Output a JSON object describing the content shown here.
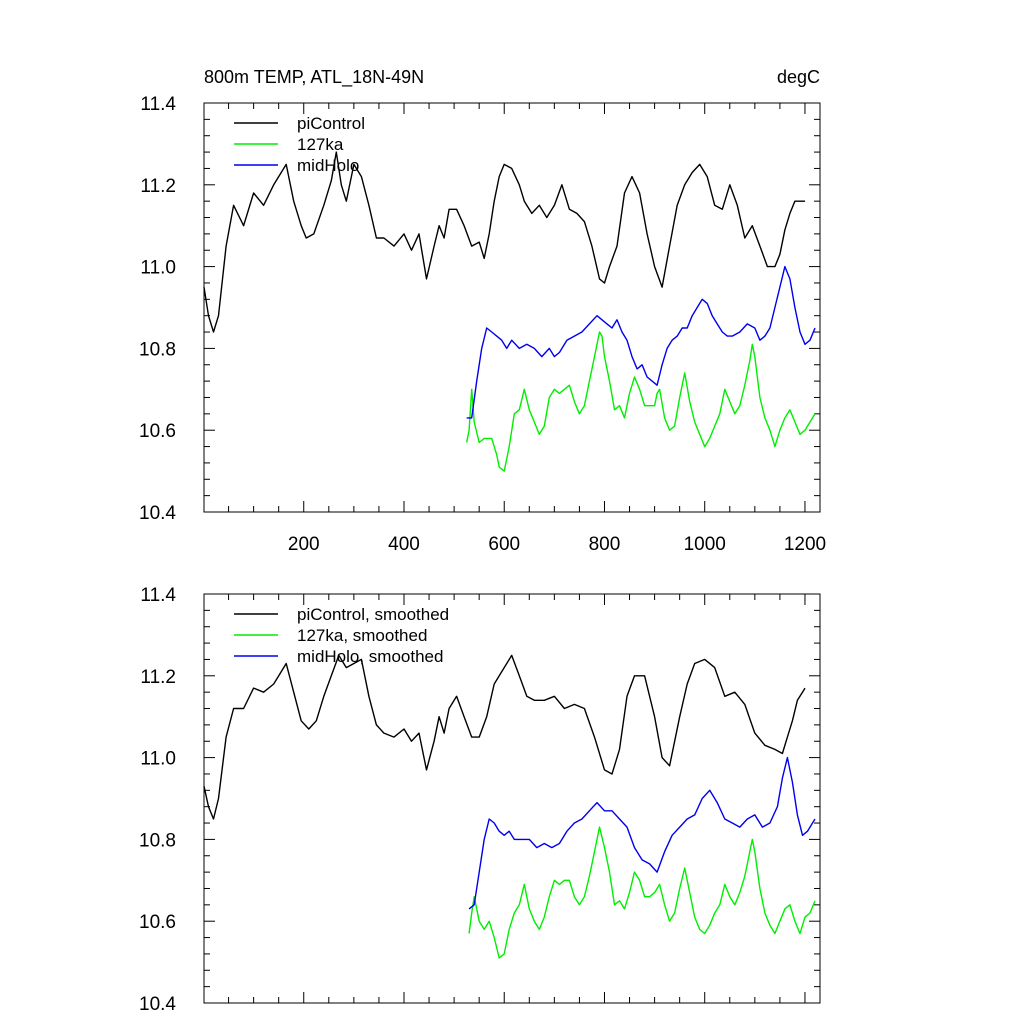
{
  "title_left": "800m TEMP, ATL_18N-49N",
  "title_right": "degC",
  "colors": {
    "picontrol": "#000000",
    "ka127": "#00ee00",
    "midholo": "#0000ee"
  },
  "chart_data": [
    {
      "type": "line",
      "xlim": [
        1,
        1230
      ],
      "ylim": [
        10.4,
        11.4
      ],
      "x_ticks": [
        200,
        400,
        600,
        800,
        1000,
        1200
      ],
      "x_tick_labels": [
        "200",
        "400",
        "600",
        "800",
        "1000",
        "1200"
      ],
      "y_ticks": [
        10.4,
        10.6,
        10.8,
        11.0,
        11.2,
        11.4
      ],
      "y_tick_labels": [
        "10.4",
        "10.6",
        "10.8",
        "11.0",
        "11.2",
        "11.4"
      ],
      "legend": [
        "piControl",
        "127ka",
        "midHolo"
      ],
      "legend_position": "top-left",
      "series": [
        {
          "name": "piControl",
          "color": "#000000",
          "x": [
            1,
            10,
            20,
            30,
            45,
            60,
            80,
            100,
            120,
            140,
            165,
            180,
            195,
            205,
            220,
            240,
            255,
            265,
            275,
            285,
            300,
            315,
            330,
            345,
            360,
            380,
            400,
            415,
            430,
            445,
            460,
            470,
            480,
            490,
            505,
            520,
            535,
            550,
            560,
            570,
            580,
            590,
            600,
            615,
            630,
            640,
            655,
            670,
            685,
            700,
            715,
            730,
            745,
            760,
            775,
            790,
            800,
            810,
            825,
            840,
            855,
            870,
            885,
            900,
            915,
            930,
            945,
            960,
            975,
            990,
            1005,
            1020,
            1035,
            1050,
            1065,
            1080,
            1095,
            1110,
            1125,
            1140,
            1150,
            1160,
            1170,
            1180,
            1190,
            1200
          ],
          "y": [
            10.95,
            10.88,
            10.84,
            10.88,
            11.05,
            11.15,
            11.1,
            11.18,
            11.15,
            11.2,
            11.25,
            11.16,
            11.1,
            11.07,
            11.08,
            11.15,
            11.21,
            11.28,
            11.2,
            11.16,
            11.25,
            11.22,
            11.15,
            11.07,
            11.07,
            11.05,
            11.08,
            11.04,
            11.08,
            10.97,
            11.05,
            11.1,
            11.07,
            11.14,
            11.14,
            11.1,
            11.05,
            11.06,
            11.02,
            11.08,
            11.16,
            11.22,
            11.25,
            11.24,
            11.2,
            11.16,
            11.13,
            11.15,
            11.12,
            11.15,
            11.2,
            11.14,
            11.13,
            11.11,
            11.05,
            10.97,
            10.96,
            11.0,
            11.05,
            11.18,
            11.22,
            11.18,
            11.08,
            11.0,
            10.95,
            11.05,
            11.15,
            11.2,
            11.23,
            11.25,
            11.22,
            11.15,
            11.14,
            11.2,
            11.15,
            11.07,
            11.1,
            11.05,
            11.0,
            11.0,
            11.03,
            11.09,
            11.13,
            11.16,
            11.16,
            11.16
          ]
        },
        {
          "name": "127ka",
          "color": "#00ee00",
          "x": [
            525,
            530,
            535,
            540,
            550,
            560,
            575,
            585,
            590,
            600,
            610,
            620,
            630,
            640,
            650,
            660,
            670,
            680,
            690,
            700,
            710,
            720,
            730,
            740,
            750,
            760,
            770,
            780,
            790,
            795,
            800,
            810,
            820,
            830,
            840,
            850,
            860,
            870,
            880,
            890,
            900,
            905,
            910,
            920,
            930,
            940,
            950,
            960,
            970,
            980,
            990,
            1000,
            1010,
            1020,
            1030,
            1040,
            1050,
            1060,
            1070,
            1080,
            1090,
            1095,
            1100,
            1110,
            1120,
            1130,
            1140,
            1150,
            1160,
            1170,
            1180,
            1190,
            1200,
            1210,
            1220
          ],
          "y": [
            10.57,
            10.6,
            10.7,
            10.62,
            10.57,
            10.58,
            10.58,
            10.54,
            10.51,
            10.5,
            10.56,
            10.64,
            10.65,
            10.7,
            10.65,
            10.62,
            10.59,
            10.61,
            10.68,
            10.7,
            10.69,
            10.7,
            10.71,
            10.67,
            10.64,
            10.66,
            10.72,
            10.78,
            10.84,
            10.83,
            10.78,
            10.72,
            10.65,
            10.66,
            10.63,
            10.69,
            10.73,
            10.7,
            10.66,
            10.66,
            10.66,
            10.69,
            10.7,
            10.63,
            10.6,
            10.61,
            10.68,
            10.74,
            10.67,
            10.62,
            10.59,
            10.56,
            10.58,
            10.61,
            10.64,
            10.7,
            10.67,
            10.64,
            10.66,
            10.71,
            10.77,
            10.81,
            10.78,
            10.68,
            10.63,
            10.6,
            10.56,
            10.6,
            10.63,
            10.65,
            10.62,
            10.59,
            10.6,
            10.62,
            10.64
          ]
        },
        {
          "name": "midHolo",
          "color": "#0000ee",
          "x": [
            525,
            535,
            545,
            555,
            565,
            575,
            585,
            595,
            605,
            615,
            630,
            645,
            660,
            675,
            690,
            700,
            710,
            725,
            740,
            755,
            770,
            785,
            795,
            805,
            815,
            825,
            835,
            845,
            855,
            865,
            875,
            885,
            895,
            905,
            915,
            925,
            935,
            945,
            955,
            965,
            975,
            985,
            995,
            1005,
            1015,
            1025,
            1035,
            1045,
            1055,
            1070,
            1085,
            1100,
            1110,
            1120,
            1130,
            1140,
            1150,
            1160,
            1170,
            1180,
            1190,
            1200,
            1210,
            1220
          ],
          "y": [
            10.63,
            10.63,
            10.72,
            10.8,
            10.85,
            10.84,
            10.83,
            10.82,
            10.8,
            10.82,
            10.8,
            10.81,
            10.8,
            10.78,
            10.8,
            10.78,
            10.79,
            10.82,
            10.83,
            10.84,
            10.86,
            10.88,
            10.87,
            10.86,
            10.85,
            10.87,
            10.84,
            10.82,
            10.78,
            10.75,
            10.76,
            10.73,
            10.72,
            10.71,
            10.76,
            10.8,
            10.82,
            10.83,
            10.85,
            10.85,
            10.88,
            10.9,
            10.92,
            10.91,
            10.88,
            10.86,
            10.84,
            10.83,
            10.83,
            10.84,
            10.86,
            10.85,
            10.82,
            10.83,
            10.85,
            10.9,
            10.95,
            11.0,
            10.97,
            10.9,
            10.84,
            10.81,
            10.82,
            10.85
          ]
        }
      ]
    },
    {
      "type": "line",
      "xlim": [
        1,
        1230
      ],
      "ylim": [
        10.4,
        11.4
      ],
      "x_ticks": [
        200,
        400,
        600,
        800,
        1000,
        1200
      ],
      "x_tick_labels": [],
      "y_ticks": [
        10.4,
        10.6,
        10.8,
        11.0,
        11.2,
        11.4
      ],
      "y_tick_labels": [
        "10.4",
        "10.6",
        "10.8",
        "11.0",
        "11.2",
        "11.4"
      ],
      "legend": [
        "piControl, smoothed",
        "127ka, smoothed",
        "midHolo, smoothed"
      ],
      "legend_position": "top-left",
      "series": [
        {
          "name": "piControl, smoothed",
          "color": "#000000",
          "x": [
            1,
            10,
            20,
            30,
            45,
            60,
            80,
            100,
            120,
            140,
            165,
            180,
            195,
            210,
            225,
            240,
            255,
            270,
            285,
            300,
            315,
            330,
            345,
            360,
            380,
            400,
            415,
            430,
            445,
            460,
            470,
            480,
            490,
            505,
            520,
            535,
            550,
            565,
            580,
            600,
            615,
            630,
            645,
            660,
            680,
            700,
            720,
            740,
            760,
            780,
            800,
            815,
            830,
            845,
            860,
            880,
            900,
            915,
            930,
            950,
            965,
            980,
            1000,
            1020,
            1040,
            1060,
            1080,
            1100,
            1120,
            1140,
            1155,
            1165,
            1175,
            1185,
            1195,
            1200
          ],
          "y": [
            10.93,
            10.88,
            10.85,
            10.9,
            11.05,
            11.12,
            11.12,
            11.17,
            11.16,
            11.18,
            11.23,
            11.16,
            11.09,
            11.07,
            11.09,
            11.15,
            11.2,
            11.25,
            11.22,
            11.23,
            11.24,
            11.15,
            11.08,
            11.06,
            11.05,
            11.07,
            11.04,
            11.06,
            10.97,
            11.04,
            11.1,
            11.06,
            11.12,
            11.15,
            11.1,
            11.05,
            11.05,
            11.1,
            11.18,
            11.22,
            11.25,
            11.2,
            11.15,
            11.14,
            11.14,
            11.15,
            11.12,
            11.13,
            11.12,
            11.05,
            10.97,
            10.96,
            11.02,
            11.15,
            11.2,
            11.2,
            11.1,
            11.0,
            10.98,
            11.1,
            11.18,
            11.23,
            11.24,
            11.22,
            11.15,
            11.16,
            11.13,
            11.06,
            11.03,
            11.02,
            11.01,
            11.05,
            11.09,
            11.14,
            11.16,
            11.17
          ]
        },
        {
          "name": "127ka, smoothed",
          "color": "#00ee00",
          "x": [
            530,
            535,
            540,
            550,
            560,
            570,
            580,
            590,
            600,
            610,
            620,
            630,
            640,
            650,
            660,
            670,
            680,
            690,
            700,
            710,
            720,
            730,
            740,
            750,
            760,
            770,
            780,
            790,
            800,
            810,
            820,
            830,
            840,
            850,
            860,
            870,
            880,
            890,
            900,
            910,
            920,
            930,
            940,
            950,
            960,
            970,
            980,
            990,
            1000,
            1010,
            1020,
            1030,
            1040,
            1050,
            1060,
            1070,
            1080,
            1090,
            1095,
            1100,
            1110,
            1120,
            1130,
            1140,
            1150,
            1160,
            1170,
            1180,
            1190,
            1200,
            1210,
            1220
          ],
          "y": [
            10.57,
            10.62,
            10.66,
            10.6,
            10.58,
            10.6,
            10.56,
            10.51,
            10.52,
            10.58,
            10.62,
            10.64,
            10.69,
            10.63,
            10.6,
            10.58,
            10.61,
            10.66,
            10.7,
            10.69,
            10.7,
            10.7,
            10.66,
            10.64,
            10.66,
            10.71,
            10.77,
            10.83,
            10.78,
            10.72,
            10.64,
            10.65,
            10.63,
            10.67,
            10.72,
            10.7,
            10.66,
            10.66,
            10.67,
            10.69,
            10.64,
            10.6,
            10.62,
            10.68,
            10.73,
            10.67,
            10.61,
            10.58,
            10.57,
            10.59,
            10.62,
            10.64,
            10.69,
            10.66,
            10.64,
            10.67,
            10.71,
            10.77,
            10.8,
            10.77,
            10.68,
            10.62,
            10.59,
            10.57,
            10.6,
            10.63,
            10.64,
            10.6,
            10.57,
            10.61,
            10.62,
            10.65
          ]
        },
        {
          "name": "midHolo, smoothed",
          "color": "#0000ee",
          "x": [
            530,
            540,
            550,
            560,
            570,
            580,
            590,
            600,
            610,
            620,
            635,
            650,
            665,
            680,
            695,
            710,
            725,
            740,
            755,
            770,
            785,
            800,
            815,
            830,
            845,
            860,
            875,
            890,
            905,
            920,
            935,
            950,
            965,
            980,
            995,
            1010,
            1025,
            1040,
            1055,
            1070,
            1085,
            1100,
            1115,
            1130,
            1145,
            1155,
            1165,
            1175,
            1185,
            1195,
            1205,
            1215,
            1220
          ],
          "y": [
            10.63,
            10.64,
            10.72,
            10.8,
            10.85,
            10.84,
            10.82,
            10.81,
            10.82,
            10.8,
            10.8,
            10.8,
            10.78,
            10.79,
            10.78,
            10.79,
            10.82,
            10.84,
            10.85,
            10.87,
            10.89,
            10.87,
            10.87,
            10.85,
            10.83,
            10.78,
            10.75,
            10.74,
            10.72,
            10.77,
            10.81,
            10.83,
            10.85,
            10.86,
            10.9,
            10.92,
            10.89,
            10.85,
            10.84,
            10.83,
            10.85,
            10.86,
            10.83,
            10.84,
            10.88,
            10.95,
            11.0,
            10.94,
            10.86,
            10.81,
            10.82,
            10.84,
            10.85
          ]
        }
      ]
    }
  ]
}
